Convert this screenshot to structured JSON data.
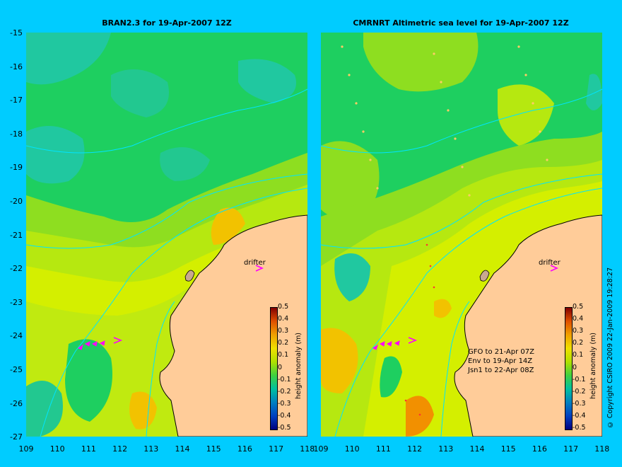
{
  "left_panel": {
    "title": "BRAN2.3 for 19-Apr-2007 12Z",
    "drifter_label": "drifter"
  },
  "right_panel": {
    "title": "CMRNRT Altimetric sea level  for 19-Apr-2007 12Z",
    "drifter_label": "drifter",
    "satellite_info": [
      "GFO to 21-Apr 07Z",
      "Env to 19-Apr 14Z",
      "Jsn1 to 22-Apr 08Z"
    ]
  },
  "y_axis_labels": [
    "-15",
    "-16",
    "-17",
    "-18",
    "-19",
    "-20",
    "-21",
    "-22",
    "-23",
    "-24",
    "-25",
    "-26",
    "-27"
  ],
  "left_x_labels": [
    "109",
    "110",
    "111",
    "112",
    "113",
    "114",
    "115",
    "116",
    "117",
    "118"
  ],
  "right_x_labels": [
    "109",
    "110",
    "111",
    "112",
    "113",
    "114",
    "115",
    "116",
    "117",
    "118"
  ],
  "colorbar": {
    "ticks": [
      "0.5",
      "0.4",
      "0.3",
      "0.2",
      "0.1",
      "0",
      "-0.1",
      "-0.2",
      "-0.3",
      "-0.4",
      "-0.5"
    ],
    "unit": "height anomaly (m)"
  },
  "copyright": "© Copyright CSIRO 2009  22-Jan-2009 19:28:27",
  "colors": {
    "background": "#00ccff",
    "land": "#ffcc99",
    "drifter": "#ff00ff"
  }
}
